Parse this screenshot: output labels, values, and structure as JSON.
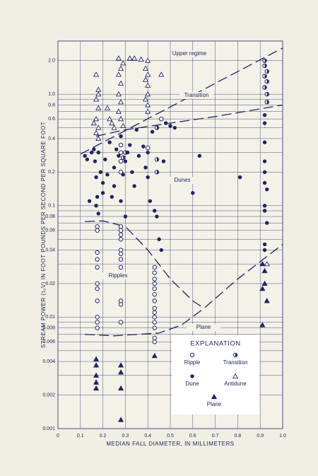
{
  "chart_data": {
    "type": "scatter",
    "ylabel": "STREAM POWER (τ₀V) IN FOOT POUNDS PER SECOND PER SQUARE FOOT",
    "xlabel": "MEDIAN FALL DIAMETER, IN MILLIMETERS",
    "xlim": [
      0,
      1.0
    ],
    "xticks": [
      0,
      0.1,
      0.2,
      0.3,
      0.4,
      0.5,
      0.6,
      0.7,
      0.8,
      0.9,
      {
        "value": 1.0,
        "label": "1.0"
      }
    ],
    "ylim": [
      0.001,
      3
    ],
    "ylog": true,
    "grid": true,
    "yticks": [
      0.001,
      0.002,
      0.004,
      0.006,
      0.008,
      0.01,
      0.02,
      0.04,
      0.06,
      0.08,
      0.1,
      0.2,
      0.4,
      0.6,
      0.8,
      {
        "value": 1.0,
        "label": "1.0"
      },
      {
        "value": 2.0,
        "label": "2.0"
      }
    ],
    "y_minor_grid": [
      0.003,
      0.005,
      0.007,
      0.009,
      0.03,
      0.05,
      0.07,
      0.09,
      0.3,
      0.5,
      0.7,
      0.9
    ],
    "color": "#1f2462",
    "annotations": [
      "Upper regime",
      "Transition",
      "Dunes",
      "Ripples",
      "Plane"
    ],
    "boundaries": [
      {
        "x": [
          0.1,
          1.0
        ],
        "y": [
          0.29,
          2.6
        ]
      },
      {
        "x": [
          0.17,
          0.3,
          0.5,
          0.7,
          1.0
        ],
        "y": [
          0.42,
          0.48,
          0.55,
          0.63,
          0.8
        ]
      },
      {
        "x": [
          0.12,
          0.2,
          0.3,
          0.4,
          0.5,
          0.6,
          0.65
        ],
        "y": [
          0.072,
          0.073,
          0.065,
          0.04,
          0.022,
          0.014,
          0.012
        ]
      },
      {
        "x": [
          0.12,
          0.25,
          0.35,
          0.45,
          0.55,
          0.65,
          0.8,
          1.0
        ],
        "y": [
          0.007,
          0.0068,
          0.007,
          0.0072,
          0.0085,
          0.012,
          0.022,
          0.045
        ]
      }
    ],
    "legend": "lower right",
    "legend_title": "EXPLANATION",
    "series": [
      {
        "name": "Ripple",
        "marker": "circle-open",
        "x": [
          0.175,
          0.175,
          0.175,
          0.175,
          0.175,
          0.175,
          0.175,
          0.175,
          0.175,
          0.175,
          0.175,
          0.28,
          0.28,
          0.28,
          0.28,
          0.28,
          0.28,
          0.28,
          0.28,
          0.28,
          0.28,
          0.28,
          0.28,
          0.28,
          0.28,
          0.28,
          0.43,
          0.43,
          0.43,
          0.43,
          0.43,
          0.43,
          0.43,
          0.43,
          0.43,
          0.43,
          0.43,
          0.43,
          0.43,
          0.43,
          0.4,
          0.46
        ],
        "values": [
          0.065,
          0.06,
          0.038,
          0.033,
          0.028,
          0.02,
          0.018,
          0.014,
          0.01,
          0.009,
          0.008,
          0.065,
          0.06,
          0.055,
          0.05,
          0.04,
          0.037,
          0.033,
          0.028,
          0.014,
          0.013,
          0.009,
          0.35,
          0.3,
          0.25,
          0.2,
          0.028,
          0.025,
          0.022,
          0.02,
          0.018,
          0.016,
          0.014,
          0.012,
          0.011,
          0.01,
          0.009,
          0.008,
          0.0065,
          0.006,
          0.33,
          0.6
        ]
      },
      {
        "name": "Transition",
        "marker": "circle-half",
        "x": [
          0.29,
          0.3,
          0.44,
          0.44,
          0.44,
          0.92,
          0.92,
          0.93,
          0.92,
          0.93,
          0.92,
          0.93,
          0.93
        ],
        "values": [
          0.27,
          0.3,
          0.5,
          0.26,
          0.2,
          2.0,
          1.8,
          1.6,
          1.45,
          1.3,
          1.15,
          1.0,
          0.85
        ]
      },
      {
        "name": "Dune",
        "marker": "circle-filled",
        "x": [
          0.12,
          0.13,
          0.14,
          0.15,
          0.16,
          0.165,
          0.17,
          0.17,
          0.175,
          0.18,
          0.18,
          0.19,
          0.2,
          0.2,
          0.21,
          0.22,
          0.23,
          0.24,
          0.25,
          0.25,
          0.26,
          0.27,
          0.28,
          0.28,
          0.29,
          0.3,
          0.3,
          0.31,
          0.32,
          0.33,
          0.34,
          0.35,
          0.36,
          0.38,
          0.39,
          0.4,
          0.4,
          0.41,
          0.42,
          0.43,
          0.44,
          0.45,
          0.46,
          0.47,
          0.48,
          0.5,
          0.52,
          0.63,
          0.6,
          0.81,
          0.92,
          0.92,
          0.92,
          0.92,
          0.92,
          0.92,
          0.93,
          0.92,
          0.92,
          0.93,
          0.92,
          0.92
        ],
        "values": [
          0.28,
          0.26,
          0.11,
          0.3,
          0.32,
          0.25,
          0.18,
          0.1,
          0.12,
          0.3,
          0.085,
          0.2,
          0.16,
          0.13,
          0.26,
          0.19,
          0.37,
          0.12,
          0.22,
          0.15,
          0.32,
          0.28,
          0.42,
          0.11,
          0.19,
          0.25,
          0.08,
          0.3,
          0.35,
          0.2,
          0.15,
          0.48,
          0.28,
          0.34,
          0.22,
          0.3,
          0.18,
          0.11,
          0.46,
          0.09,
          0.08,
          0.05,
          0.04,
          0.25,
          0.55,
          0.52,
          0.5,
          0.28,
          0.13,
          0.18,
          0.65,
          0.55,
          0.37,
          0.25,
          0.2,
          0.16,
          0.14,
          0.1,
          0.09,
          0.07,
          0.045,
          0.04
        ]
      },
      {
        "name": "Antidune",
        "marker": "triangle-open",
        "x": [
          0.17,
          0.18,
          0.18,
          0.17,
          0.18,
          0.17,
          0.16,
          0.18,
          0.17,
          0.18,
          0.27,
          0.29,
          0.28,
          0.27,
          0.28,
          0.27,
          0.28,
          0.27,
          0.28,
          0.29,
          0.32,
          0.34,
          0.37,
          0.4,
          0.39,
          0.4,
          0.39,
          0.4,
          0.4,
          0.39,
          0.4,
          0.4,
          0.46,
          0.22,
          0.23,
          0.24,
          0.25,
          0.93
        ],
        "values": [
          1.5,
          1.1,
          1.0,
          0.9,
          0.75,
          0.6,
          0.55,
          0.5,
          0.45,
          0.4,
          2.1,
          1.9,
          1.7,
          1.5,
          1.25,
          1.0,
          0.85,
          0.7,
          0.6,
          0.52,
          2.1,
          2.1,
          2.05,
          2.0,
          1.7,
          1.5,
          1.35,
          1.2,
          1.0,
          0.9,
          0.8,
          0.7,
          1.5,
          0.75,
          0.6,
          0.55,
          0.5,
          0.03
        ]
      },
      {
        "name": "Plane",
        "marker": "triangle-filled",
        "x": [
          0.17,
          0.17,
          0.17,
          0.17,
          0.17,
          0.28,
          0.28,
          0.28,
          0.28,
          0.43,
          0.91,
          0.92,
          0.92,
          0.91,
          0.93,
          0.91
        ],
        "values": [
          0.0042,
          0.0037,
          0.003,
          0.0026,
          0.0023,
          0.0037,
          0.0032,
          0.0023,
          0.0012,
          0.0045,
          0.03,
          0.026,
          0.02,
          0.018,
          0.014,
          0.0085
        ]
      }
    ]
  }
}
